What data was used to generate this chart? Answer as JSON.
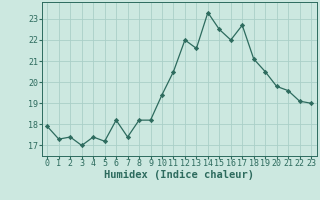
{
  "x": [
    0,
    1,
    2,
    3,
    4,
    5,
    6,
    7,
    8,
    9,
    10,
    11,
    12,
    13,
    14,
    15,
    16,
    17,
    18,
    19,
    20,
    21,
    22,
    23
  ],
  "y": [
    17.9,
    17.3,
    17.4,
    17.0,
    17.4,
    17.2,
    18.2,
    17.4,
    18.2,
    18.2,
    19.4,
    20.5,
    22.0,
    21.6,
    23.3,
    22.5,
    22.0,
    22.7,
    21.1,
    20.5,
    19.8,
    19.6,
    19.1,
    19.0
  ],
  "xlabel": "Humidex (Indice chaleur)",
  "xlim": [
    -0.5,
    23.5
  ],
  "ylim": [
    16.5,
    23.8
  ],
  "yticks": [
    17,
    18,
    19,
    20,
    21,
    22,
    23
  ],
  "xticks": [
    0,
    1,
    2,
    3,
    4,
    5,
    6,
    7,
    8,
    9,
    10,
    11,
    12,
    13,
    14,
    15,
    16,
    17,
    18,
    19,
    20,
    21,
    22,
    23
  ],
  "line_color": "#2d6b5e",
  "marker": "D",
  "marker_size": 2.2,
  "bg_color": "#cce8e0",
  "grid_color": "#aacfc8",
  "tick_fontsize": 6.0,
  "xlabel_fontsize": 7.5
}
